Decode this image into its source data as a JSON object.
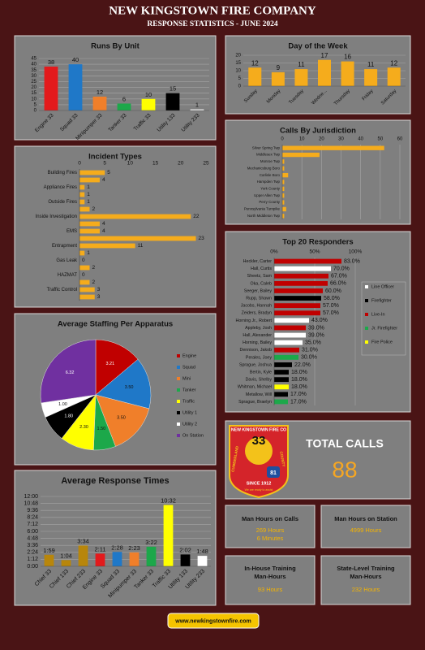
{
  "header": {
    "title": "NEW KINGSTOWN FIRE COMPANY",
    "subtitle": "RESPONSE STATISTICS - JUNE 2024"
  },
  "chart_data": [
    {
      "type": "bar",
      "title": "Runs By Unit",
      "categories": [
        "Engine 33",
        "Squad 33",
        "Minipumper 33",
        "Tanker 33",
        "Traffic 33",
        "Utility 133",
        "Utility 233"
      ],
      "values": [
        38,
        40,
        12,
        6,
        10,
        15,
        1
      ],
      "colors": [
        "#e31a1c",
        "#1f78c8",
        "#f07f2a",
        "#1ca84a",
        "#ffff00",
        "#000000",
        "#ffffff"
      ],
      "ylim": [
        0,
        45
      ],
      "yticks": [
        0,
        5,
        10,
        15,
        20,
        25,
        30,
        35,
        40,
        45
      ],
      "grid": true
    },
    {
      "type": "bar",
      "title": "Day of the Week",
      "categories": [
        "Sunday",
        "Monday",
        "Tuesday",
        "Wedne...",
        "Thursday",
        "Friday",
        "Saturday"
      ],
      "values": [
        12,
        9,
        11,
        17,
        16,
        11,
        12
      ],
      "color": "#f5ac1c",
      "ylim": [
        0,
        20
      ],
      "yticks": [
        0,
        5,
        10,
        15,
        20
      ],
      "grid": true
    },
    {
      "type": "barh",
      "title": "Calls By Jurisdiction",
      "categories": [
        "Silver Spring Twp",
        "Middlesex Twp",
        "Monroe Twp",
        "Mechanicsburg Boro",
        "Carlisle Boro",
        "Hampden Twp",
        "York County",
        "Upper Allen Twp",
        "Perry County",
        "Pennsylvania Turnpike",
        "North Middleton Twp"
      ],
      "values": [
        52,
        19,
        1,
        1,
        3,
        1,
        1,
        1,
        1,
        2,
        1
      ],
      "color": "#f5ac1c",
      "xlim": [
        0,
        60
      ],
      "xticks": [
        0,
        10,
        20,
        30,
        40,
        50,
        60
      ],
      "grid": true
    },
    {
      "type": "barh",
      "title": "Incident Types",
      "categories": [
        "Building Fires",
        null,
        "Appliance Fires",
        null,
        "Outside Fires",
        null,
        "Inside Investigation",
        null,
        "EMS",
        null,
        "Entrapment",
        null,
        "Gas Leak",
        null,
        "HAZMAT",
        null,
        "Traffic Control",
        null
      ],
      "values": [
        5,
        4,
        1,
        1,
        1,
        2,
        22,
        4,
        4,
        23,
        11,
        1,
        0,
        2,
        0,
        2,
        3,
        3
      ],
      "color": "#f5ac1c",
      "xlim": [
        0,
        25
      ],
      "xticks": [
        0,
        5,
        10,
        15,
        20,
        25
      ],
      "grid": false,
      "show_values": true
    },
    {
      "type": "barh",
      "title": "Top 20 Responders",
      "categories": [
        "Heckler, Carter",
        "Hall, Curtis",
        "Sheetz, Sam",
        "Oka, Caleb",
        "Seeger, Bailey",
        "Rupp, Shawn",
        "Jacobs, Hannah",
        "Zeiders, Bradyn",
        "Horning Jr., Robert",
        "Appleby, Josh",
        "Hall, Alexander",
        "Horning, Bailey",
        "Dennison, Jakob",
        "Perales, Joey",
        "Sprague, Joshua",
        "Bertin, Kyle",
        "Davis, Shelby",
        "Whitman, Michael",
        "Metallow, Will",
        "Sprague, Braelyn"
      ],
      "values": [
        83,
        70,
        67,
        66,
        60,
        58,
        57,
        57,
        43,
        39,
        39,
        35,
        31,
        30,
        22,
        18,
        18,
        18,
        17,
        17
      ],
      "value_labels": [
        "83.0%",
        "70.0%",
        "67.0%",
        "66.0%",
        "60.0%",
        "58.0%",
        "57.0%",
        "57.0%",
        "43.0%",
        "39.0%",
        "39.0%",
        "35.0%",
        "31.0%",
        "30.0%",
        "22.0%",
        "18.0%",
        "18.0%",
        "18.0%",
        "17.0%",
        "17.0%"
      ],
      "colors": [
        "#c00000",
        "#ffffff",
        "#c00000",
        "#c00000",
        "#c00000",
        "#000000",
        "#c00000",
        "#c00000",
        "#ffffff",
        "#c00000",
        "#ffffff",
        "#ffffff",
        "#c00000",
        "#1ca84a",
        "#000000",
        "#000000",
        "#000000",
        "#ffff00",
        "#000000",
        "#1ca84a"
      ],
      "xlim": [
        0,
        100
      ],
      "xticks": [
        {
          "value": 0,
          "label": "0%"
        },
        {
          "value": 50,
          "label": "50%"
        },
        {
          "value": 100,
          "label": "100%"
        }
      ],
      "grid": true,
      "show_values": true,
      "legend": [
        {
          "name": "Line Officer",
          "color": "#ffffff"
        },
        {
          "name": "Firefighter",
          "color": "#000000"
        },
        {
          "name": "Live-In",
          "color": "#c00000"
        },
        {
          "name": "Jr. Firefighter",
          "color": "#1ca84a"
        },
        {
          "name": "Fire Police",
          "color": "#ffff00"
        }
      ]
    },
    {
      "type": "pie",
      "title": "Average Staffing Per Apparatus",
      "categories": [
        "Engine",
        "Squad",
        "Mini",
        "Tanker",
        "Traffic",
        "Utility 1",
        "Utility 2",
        "On Station"
      ],
      "values": [
        3.21,
        3.5,
        3.5,
        1.5,
        2.3,
        1.8,
        1.0,
        6.32
      ],
      "value_labels": [
        "3.21",
        "3.50",
        "3.50",
        "1.50",
        "2.30",
        "1.80",
        "1.00",
        "6.32"
      ],
      "colors": [
        "#c00000",
        "#1f78c8",
        "#f07f2a",
        "#1ca84a",
        "#ffff00",
        "#000000",
        "#ffffff",
        "#7030a0"
      ]
    },
    {
      "type": "bar",
      "title": "Average Response Times",
      "categories": [
        "Chief 33",
        "Chief 133",
        "Chief 233",
        "Engine 33",
        "Squad 33",
        "Minipumper 33",
        "Tanker 33",
        "Traffic 33",
        "Utility 133",
        "Utility 233"
      ],
      "values": [
        119,
        64,
        214,
        131,
        148,
        143,
        202,
        632,
        122,
        108
      ],
      "value_labels": [
        "1:59",
        "1:04",
        "3:34",
        "2:11",
        "2:28",
        "2:23",
        "3:22",
        "10:32",
        "2:02",
        "1:48"
      ],
      "colors": [
        "#b8860b",
        "#b8860b",
        "#b8860b",
        "#e31a1c",
        "#1f78c8",
        "#f07f2a",
        "#1ca84a",
        "#ffff00",
        "#000000",
        "#ffffff"
      ],
      "ylim": [
        0,
        720
      ],
      "yticks": [
        {
          "value": 0,
          "label": "0:00"
        },
        {
          "value": 72,
          "label": "1:12"
        },
        {
          "value": 144,
          "label": "2:24"
        },
        {
          "value": 216,
          "label": "3:36"
        },
        {
          "value": 288,
          "label": "4:48"
        },
        {
          "value": 360,
          "label": "6:00"
        },
        {
          "value": 432,
          "label": "7:12"
        },
        {
          "value": 504,
          "label": "8:24"
        },
        {
          "value": 576,
          "label": "9:36"
        },
        {
          "value": 648,
          "label": "10:48"
        },
        {
          "value": 720,
          "label": "12:00"
        }
      ],
      "grid": true
    }
  ],
  "logo": {
    "arc": "NEW KINGSTOWN FIRE CO",
    "number": "33",
    "left": "CUMBERLAND",
    "right": "COUNTY",
    "since": "SINCE 1912",
    "route": "81",
    "motto": "We are ready to assist"
  },
  "total_calls": {
    "label": "TOTAL CALLS",
    "value": "88"
  },
  "stats": [
    {
      "title": "Man Hours on Calls",
      "lines": [
        "269 Hours",
        "6 Minutes"
      ]
    },
    {
      "title": "Man Hours on Station",
      "lines": [
        "4999 Hours"
      ]
    },
    {
      "title": "In-House Training Man-Hours",
      "lines": [
        "93 Hours"
      ]
    },
    {
      "title": "State-Level Training Man-Hours",
      "lines": [
        "232 Hours"
      ]
    }
  ],
  "footer": "www.newkingstownfire.com"
}
